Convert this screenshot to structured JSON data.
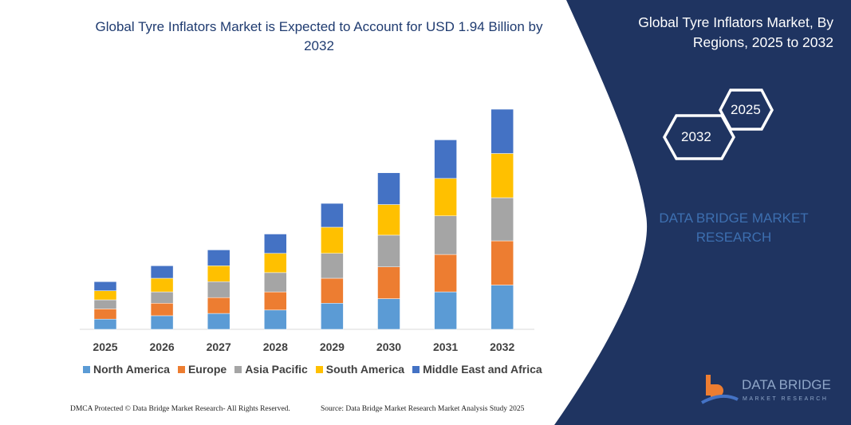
{
  "header": {
    "title": "Global Tyre Inflators Market is Expected to Account for USD 1.94 Billion by 2032"
  },
  "side_panel": {
    "title": "Global Tyre Inflators Market, By Regions, 2025 to 2032",
    "hex_start": "2025",
    "hex_end": "2032",
    "brand_line1": "DATA BRIDGE MARKET",
    "brand_line2": "RESEARCH",
    "logo_text": "DATA BRIDGE",
    "logo_sub": "MARKET RESEARCH",
    "background_color": "#1f3461"
  },
  "footer": {
    "left": "DMCA Protected © Data Bridge Market Research- All Rights Reserved.",
    "right": "Source: Data Bridge Market Research Market Analysis Study 2025"
  },
  "chart_data": {
    "type": "bar",
    "stacked": true,
    "title": "Global Tyre Inflators Market is Expected to Account for USD 1.94 Billion by 2032",
    "categories": [
      "2025",
      "2026",
      "2027",
      "2028",
      "2029",
      "2030",
      "2031",
      "2032"
    ],
    "series": [
      {
        "name": "North America",
        "color": "#5b9bd5",
        "values": [
          0.09,
          0.12,
          0.14,
          0.17,
          0.23,
          0.27,
          0.33,
          0.39
        ]
      },
      {
        "name": "Europe",
        "color": "#ed7d31",
        "values": [
          0.09,
          0.11,
          0.14,
          0.16,
          0.22,
          0.28,
          0.33,
          0.39
        ]
      },
      {
        "name": "Asia Pacific",
        "color": "#a5a5a5",
        "values": [
          0.08,
          0.1,
          0.14,
          0.17,
          0.22,
          0.28,
          0.34,
          0.38
        ]
      },
      {
        "name": "South America",
        "color": "#ffc000",
        "values": [
          0.08,
          0.12,
          0.14,
          0.17,
          0.23,
          0.27,
          0.33,
          0.39
        ]
      },
      {
        "name": "Middle East and Africa",
        "color": "#4472c4",
        "values": [
          0.08,
          0.11,
          0.14,
          0.17,
          0.21,
          0.28,
          0.34,
          0.39
        ]
      }
    ],
    "y_axis_visible": false,
    "grid": false,
    "legend_position": "bottom"
  }
}
